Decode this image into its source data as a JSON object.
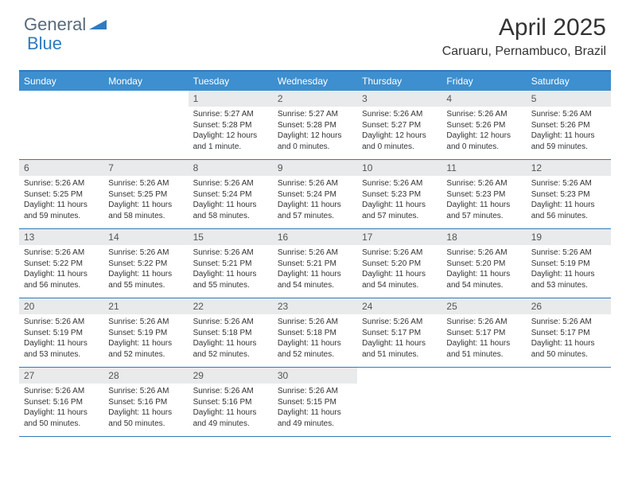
{
  "logo": {
    "general": "General",
    "blue": "Blue"
  },
  "title": "April 2025",
  "subtitle": "Caruaru, Pernambuco, Brazil",
  "colors": {
    "header_bar": "#3d8fcf",
    "header_border_top": "#2f7bbf",
    "row_border": "#2f7bbf",
    "daynum_bg": "#e9eaeb",
    "text": "#333333",
    "logo_gray": "#5a6b7a",
    "logo_blue": "#2f7bbf",
    "background": "#ffffff"
  },
  "day_names": [
    "Sunday",
    "Monday",
    "Tuesday",
    "Wednesday",
    "Thursday",
    "Friday",
    "Saturday"
  ],
  "weeks": [
    [
      {
        "n": "",
        "sr": "",
        "ss": "",
        "dl": ""
      },
      {
        "n": "",
        "sr": "",
        "ss": "",
        "dl": ""
      },
      {
        "n": "1",
        "sr": "Sunrise: 5:27 AM",
        "ss": "Sunset: 5:28 PM",
        "dl": "Daylight: 12 hours and 1 minute."
      },
      {
        "n": "2",
        "sr": "Sunrise: 5:27 AM",
        "ss": "Sunset: 5:28 PM",
        "dl": "Daylight: 12 hours and 0 minutes."
      },
      {
        "n": "3",
        "sr": "Sunrise: 5:26 AM",
        "ss": "Sunset: 5:27 PM",
        "dl": "Daylight: 12 hours and 0 minutes."
      },
      {
        "n": "4",
        "sr": "Sunrise: 5:26 AM",
        "ss": "Sunset: 5:26 PM",
        "dl": "Daylight: 12 hours and 0 minutes."
      },
      {
        "n": "5",
        "sr": "Sunrise: 5:26 AM",
        "ss": "Sunset: 5:26 PM",
        "dl": "Daylight: 11 hours and 59 minutes."
      }
    ],
    [
      {
        "n": "6",
        "sr": "Sunrise: 5:26 AM",
        "ss": "Sunset: 5:25 PM",
        "dl": "Daylight: 11 hours and 59 minutes."
      },
      {
        "n": "7",
        "sr": "Sunrise: 5:26 AM",
        "ss": "Sunset: 5:25 PM",
        "dl": "Daylight: 11 hours and 58 minutes."
      },
      {
        "n": "8",
        "sr": "Sunrise: 5:26 AM",
        "ss": "Sunset: 5:24 PM",
        "dl": "Daylight: 11 hours and 58 minutes."
      },
      {
        "n": "9",
        "sr": "Sunrise: 5:26 AM",
        "ss": "Sunset: 5:24 PM",
        "dl": "Daylight: 11 hours and 57 minutes."
      },
      {
        "n": "10",
        "sr": "Sunrise: 5:26 AM",
        "ss": "Sunset: 5:23 PM",
        "dl": "Daylight: 11 hours and 57 minutes."
      },
      {
        "n": "11",
        "sr": "Sunrise: 5:26 AM",
        "ss": "Sunset: 5:23 PM",
        "dl": "Daylight: 11 hours and 57 minutes."
      },
      {
        "n": "12",
        "sr": "Sunrise: 5:26 AM",
        "ss": "Sunset: 5:23 PM",
        "dl": "Daylight: 11 hours and 56 minutes."
      }
    ],
    [
      {
        "n": "13",
        "sr": "Sunrise: 5:26 AM",
        "ss": "Sunset: 5:22 PM",
        "dl": "Daylight: 11 hours and 56 minutes."
      },
      {
        "n": "14",
        "sr": "Sunrise: 5:26 AM",
        "ss": "Sunset: 5:22 PM",
        "dl": "Daylight: 11 hours and 55 minutes."
      },
      {
        "n": "15",
        "sr": "Sunrise: 5:26 AM",
        "ss": "Sunset: 5:21 PM",
        "dl": "Daylight: 11 hours and 55 minutes."
      },
      {
        "n": "16",
        "sr": "Sunrise: 5:26 AM",
        "ss": "Sunset: 5:21 PM",
        "dl": "Daylight: 11 hours and 54 minutes."
      },
      {
        "n": "17",
        "sr": "Sunrise: 5:26 AM",
        "ss": "Sunset: 5:20 PM",
        "dl": "Daylight: 11 hours and 54 minutes."
      },
      {
        "n": "18",
        "sr": "Sunrise: 5:26 AM",
        "ss": "Sunset: 5:20 PM",
        "dl": "Daylight: 11 hours and 54 minutes."
      },
      {
        "n": "19",
        "sr": "Sunrise: 5:26 AM",
        "ss": "Sunset: 5:19 PM",
        "dl": "Daylight: 11 hours and 53 minutes."
      }
    ],
    [
      {
        "n": "20",
        "sr": "Sunrise: 5:26 AM",
        "ss": "Sunset: 5:19 PM",
        "dl": "Daylight: 11 hours and 53 minutes."
      },
      {
        "n": "21",
        "sr": "Sunrise: 5:26 AM",
        "ss": "Sunset: 5:19 PM",
        "dl": "Daylight: 11 hours and 52 minutes."
      },
      {
        "n": "22",
        "sr": "Sunrise: 5:26 AM",
        "ss": "Sunset: 5:18 PM",
        "dl": "Daylight: 11 hours and 52 minutes."
      },
      {
        "n": "23",
        "sr": "Sunrise: 5:26 AM",
        "ss": "Sunset: 5:18 PM",
        "dl": "Daylight: 11 hours and 52 minutes."
      },
      {
        "n": "24",
        "sr": "Sunrise: 5:26 AM",
        "ss": "Sunset: 5:17 PM",
        "dl": "Daylight: 11 hours and 51 minutes."
      },
      {
        "n": "25",
        "sr": "Sunrise: 5:26 AM",
        "ss": "Sunset: 5:17 PM",
        "dl": "Daylight: 11 hours and 51 minutes."
      },
      {
        "n": "26",
        "sr": "Sunrise: 5:26 AM",
        "ss": "Sunset: 5:17 PM",
        "dl": "Daylight: 11 hours and 50 minutes."
      }
    ],
    [
      {
        "n": "27",
        "sr": "Sunrise: 5:26 AM",
        "ss": "Sunset: 5:16 PM",
        "dl": "Daylight: 11 hours and 50 minutes."
      },
      {
        "n": "28",
        "sr": "Sunrise: 5:26 AM",
        "ss": "Sunset: 5:16 PM",
        "dl": "Daylight: 11 hours and 50 minutes."
      },
      {
        "n": "29",
        "sr": "Sunrise: 5:26 AM",
        "ss": "Sunset: 5:16 PM",
        "dl": "Daylight: 11 hours and 49 minutes."
      },
      {
        "n": "30",
        "sr": "Sunrise: 5:26 AM",
        "ss": "Sunset: 5:15 PM",
        "dl": "Daylight: 11 hours and 49 minutes."
      },
      {
        "n": "",
        "sr": "",
        "ss": "",
        "dl": ""
      },
      {
        "n": "",
        "sr": "",
        "ss": "",
        "dl": ""
      },
      {
        "n": "",
        "sr": "",
        "ss": "",
        "dl": ""
      }
    ]
  ]
}
